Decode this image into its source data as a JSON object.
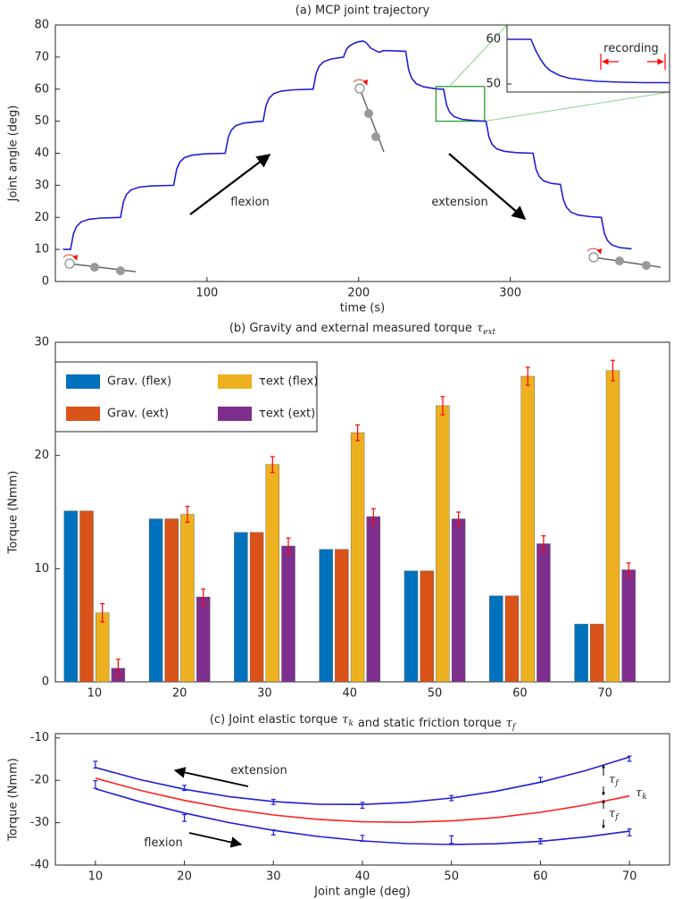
{
  "chart_data": [
    {
      "type": "line",
      "title": "(a) MCP joint trajectory",
      "xlabel": "time (s)",
      "ylabel": "Joint angle (deg)",
      "x": [
        5,
        10,
        12,
        14,
        17,
        22,
        30,
        43,
        45,
        47,
        50,
        55,
        63,
        78,
        80,
        82,
        85,
        90,
        98,
        112,
        114,
        116,
        119,
        124,
        132,
        137,
        139,
        141,
        144,
        149,
        157,
        170,
        172,
        174,
        177,
        182,
        190,
        192,
        194,
        197,
        200,
        203,
        205,
        208,
        212,
        214,
        216,
        220,
        231,
        233,
        235,
        238,
        243,
        251,
        256,
        258,
        260,
        263,
        268,
        276,
        284,
        286,
        288,
        291,
        296,
        304,
        315,
        317,
        319,
        322,
        327,
        333,
        335,
        337,
        340,
        345,
        353,
        360,
        362,
        364,
        367,
        372,
        380
      ],
      "series": [
        {
          "color": "#1f1fd6",
          "values": [
            10,
            10,
            15,
            17.2,
            18.6,
            19.4,
            19.8,
            20,
            25,
            27.2,
            28.6,
            29.4,
            29.8,
            30,
            35,
            37.2,
            38.6,
            39.4,
            39.8,
            40,
            45,
            47.2,
            48.6,
            49.4,
            49.8,
            50,
            55,
            57.2,
            58.6,
            59.4,
            59.8,
            60,
            65,
            67.2,
            68.6,
            69.4,
            70,
            72.5,
            73.5,
            74.3,
            74.8,
            75,
            74.5,
            72.8,
            71.8,
            71.5,
            72,
            72,
            71.8,
            66,
            63.4,
            61.7,
            60.7,
            60.1,
            60,
            55,
            52.8,
            51.4,
            50.6,
            50.2,
            50,
            45,
            42.8,
            41.4,
            40.6,
            40.2,
            40,
            35,
            32.8,
            31.4,
            30.6,
            30.3,
            25.5,
            23.2,
            21.6,
            20.7,
            20.2,
            20,
            15,
            12.8,
            11.4,
            10.6,
            10.2
          ]
        }
      ],
      "xlim": [
        0,
        405
      ],
      "xticks": [
        100,
        200,
        300
      ],
      "ylim": [
        0,
        80
      ],
      "yticks": [
        0,
        10,
        20,
        30,
        40,
        50,
        60,
        70,
        80
      ],
      "annotations": [
        "flexion",
        "extension"
      ]
    },
    {
      "type": "line",
      "x": [
        251,
        256,
        257,
        258,
        259,
        260,
        262,
        264,
        267,
        270,
        275,
        280,
        285
      ],
      "series": [
        {
          "color": "#1f1fd6",
          "values": [
            60,
            60,
            57.5,
            55.5,
            54,
            53,
            51.9,
            51.3,
            50.9,
            50.6,
            50.4,
            50.3,
            50.3
          ]
        }
      ],
      "xlim": [
        251,
        285
      ],
      "ylim": [
        48.2,
        63.2
      ],
      "yticks": [
        50,
        60
      ],
      "annotations": [
        "recording"
      ],
      "annotation_color": "#ff0000"
    },
    {
      "type": "bar",
      "title_parts": [
        "(b) Gravity and external measured torque",
        {
          "symbol": "τ",
          "subscript": "ext"
        }
      ],
      "ylabel": "Torque (Nmm)",
      "categories": [
        "10",
        "20",
        "30",
        "40",
        "50",
        "60",
        "70"
      ],
      "series": [
        {
          "name": "Grav. (flex)",
          "color": "#0072bd",
          "values": [
            15.1,
            14.4,
            13.2,
            11.7,
            9.8,
            7.6,
            5.1
          ]
        },
        {
          "name": "Grav. (ext)",
          "color": "#d95319",
          "values": [
            15.1,
            14.4,
            13.2,
            11.7,
            9.8,
            7.6,
            5.1
          ]
        },
        {
          "name": "τext (flex)",
          "color": "#edb120",
          "values": [
            6.1,
            14.8,
            19.2,
            22.0,
            24.4,
            27.0,
            27.5
          ],
          "errors": [
            0.8,
            0.7,
            0.7,
            0.7,
            0.8,
            0.8,
            0.9
          ]
        },
        {
          "name": "τext (ext)",
          "color": "#7e2f8e",
          "values": [
            1.2,
            7.5,
            12.0,
            14.6,
            14.4,
            12.2,
            9.9
          ],
          "errors": [
            0.8,
            0.7,
            0.7,
            0.7,
            0.6,
            0.7,
            0.6
          ]
        }
      ],
      "error_color": "#ff0000",
      "ylim": [
        0,
        30
      ],
      "yticks": [
        0,
        10,
        20,
        30
      ],
      "legend": "upper left"
    },
    {
      "type": "line",
      "title_parts": [
        "(c) Joint elastic torque",
        {
          "symbol": "τ",
          "subscript": "k"
        },
        "and static friction torque",
        {
          "symbol": "τ",
          "subscript": "f"
        }
      ],
      "xlabel": "Joint angle (deg)",
      "ylabel": "Torque (Nmm)",
      "x": [
        10,
        15,
        20,
        25,
        30,
        35,
        40,
        45,
        50,
        55,
        60,
        65,
        70
      ],
      "series": [
        {
          "color": "#1f1fd6",
          "values": [
            -17,
            -19.83,
            -22.11,
            -23.84,
            -25.01,
            -25.63,
            -25.7,
            -25.22,
            -24.18,
            -22.59,
            -20.45,
            -17.75,
            -14.5
          ]
        },
        {
          "color": "#ff2020",
          "values": [
            -19.5,
            -22.36,
            -24.76,
            -26.7,
            -28.19,
            -29.22,
            -29.8,
            -29.92,
            -29.59,
            -28.8,
            -27.56,
            -25.86,
            -23.7
          ]
        },
        {
          "color": "#1f1fd6",
          "values": [
            -22,
            -25.06,
            -27.73,
            -29.98,
            -31.82,
            -33.26,
            -34.3,
            -34.93,
            -35.16,
            -34.98,
            -34.39,
            -33.4,
            -32
          ]
        }
      ],
      "error_series": [
        {
          "color": "#1f1fd6",
          "x": [
            10,
            20,
            30,
            40,
            50,
            60,
            70
          ],
          "values": [
            -16.3,
            -21.8,
            -25.1,
            -25.9,
            -24.2,
            -19.9,
            -14.9
          ],
          "errors": [
            0.8,
            0.6,
            0.6,
            0.7,
            0.6,
            0.6,
            0.6
          ]
        },
        {
          "color": "#1f1fd6",
          "x": [
            10,
            20,
            30,
            40,
            50,
            60,
            70
          ],
          "values": [
            -21,
            -28.9,
            -32.3,
            -33.7,
            -34,
            -34.4,
            -32.3
          ],
          "errors": [
            0.9,
            0.8,
            0.6,
            0.7,
            0.9,
            0.6,
            0.8
          ]
        }
      ],
      "xlim": [
        5.5,
        74.5
      ],
      "xticks": [
        10,
        20,
        30,
        40,
        50,
        60,
        70
      ],
      "ylim": [
        -40,
        -9
      ],
      "yticks": [
        -10,
        -20,
        -30,
        -40
      ],
      "annotations": [
        "extension",
        "flexion",
        {
          "symbol": "τ",
          "subscript": "f"
        },
        {
          "symbol": "τ",
          "subscript": "f"
        },
        {
          "symbol": "τ",
          "subscript": "k"
        }
      ]
    }
  ]
}
